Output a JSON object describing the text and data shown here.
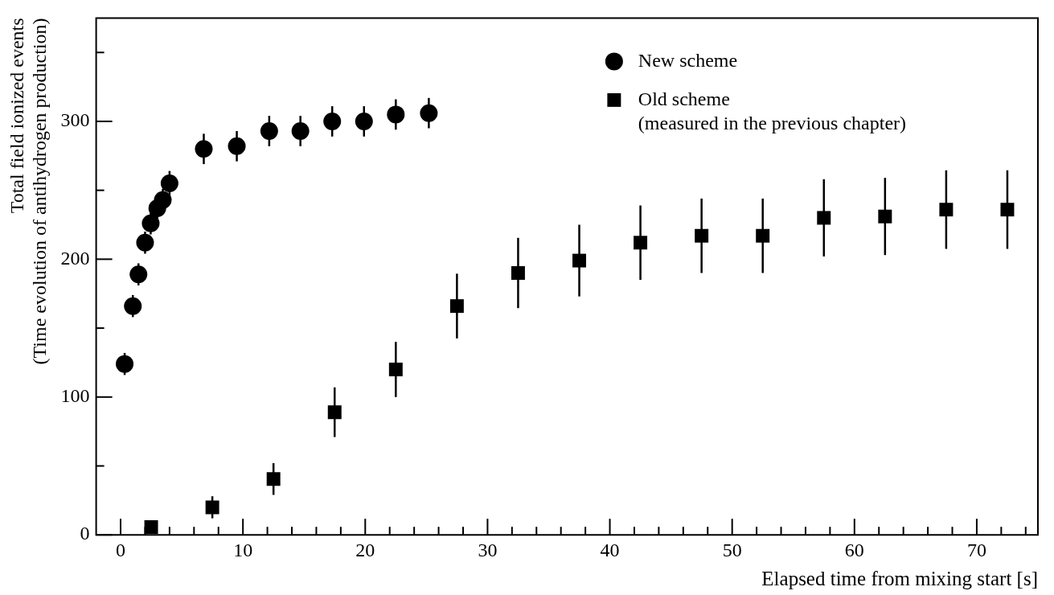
{
  "chart_data": {
    "type": "scatter",
    "xlabel": "Elapsed time from mixing start [s]",
    "ylabel": "Total field ionized events\n(Time evolution of antihydrogen production)",
    "xlim": [
      -2,
      75
    ],
    "ylim": [
      0,
      375
    ],
    "xticks": [
      0,
      {
        "value": 2,
        "label": null
      },
      {
        "value": 4,
        "label": null
      },
      {
        "value": 6,
        "label": null
      },
      {
        "value": 8,
        "label": null
      },
      10,
      {
        "value": 12,
        "label": null
      },
      {
        "value": 14,
        "label": null
      },
      {
        "value": 16,
        "label": null
      },
      {
        "value": 18,
        "label": null
      },
      20,
      {
        "value": 22,
        "label": null
      },
      {
        "value": 24,
        "label": null
      },
      {
        "value": 26,
        "label": null
      },
      {
        "value": 28,
        "label": null
      },
      30,
      {
        "value": 32,
        "label": null
      },
      {
        "value": 34,
        "label": null
      },
      {
        "value": 36,
        "label": null
      },
      {
        "value": 38,
        "label": null
      },
      40,
      {
        "value": 42,
        "label": null
      },
      {
        "value": 44,
        "label": null
      },
      {
        "value": 46,
        "label": null
      },
      {
        "value": 48,
        "label": null
      },
      50,
      {
        "value": 52,
        "label": null
      },
      {
        "value": 54,
        "label": null
      },
      {
        "value": 56,
        "label": null
      },
      {
        "value": 58,
        "label": null
      },
      60,
      {
        "value": 62,
        "label": null
      },
      {
        "value": 64,
        "label": null
      },
      {
        "value": 66,
        "label": null
      },
      {
        "value": 68,
        "label": null
      },
      70,
      {
        "value": 72,
        "label": null
      },
      {
        "value": 74,
        "label": null
      }
    ],
    "yticks": [
      0,
      {
        "value": 50,
        "label": null
      },
      100,
      {
        "value": 150,
        "label": null
      },
      200,
      {
        "value": 250,
        "label": null
      },
      300,
      {
        "value": 350,
        "label": null
      }
    ],
    "grid": false,
    "legend": "top right",
    "series": [
      {
        "name": "New scheme",
        "color": "#000000",
        "marker": "circle",
        "x": [
          0.33,
          1.0,
          1.46,
          2.0,
          2.46,
          3.0,
          3.45,
          4.0,
          6.8,
          9.5,
          12.15,
          14.7,
          17.3,
          19.9,
          22.5,
          25.2
        ],
        "values": [
          124,
          166,
          189,
          212,
          226,
          237,
          243,
          255,
          280,
          282,
          293,
          293,
          300,
          300,
          305,
          306
        ],
        "errors": [
          8,
          8,
          8,
          8,
          8,
          8,
          8,
          9,
          11,
          11,
          11,
          11,
          11,
          11,
          11,
          11
        ]
      },
      {
        "name": "Old scheme\n(measured in the previous chapter)",
        "color": "#000000",
        "marker": "square",
        "x": [
          2.5,
          7.5,
          12.5,
          17.5,
          22.5,
          27.5,
          32.5,
          37.5,
          42.5,
          47.5,
          52.5,
          57.5,
          62.5,
          67.5,
          72.5
        ],
        "values": [
          5.6,
          20,
          40.5,
          89,
          120,
          166,
          190,
          199,
          212,
          217,
          217,
          230,
          231,
          236,
          236
        ],
        "errors": [
          3,
          8,
          11.5,
          18,
          20,
          23.5,
          25.5,
          26,
          27,
          27,
          27,
          28,
          28,
          28.5,
          28.5
        ]
      }
    ]
  }
}
